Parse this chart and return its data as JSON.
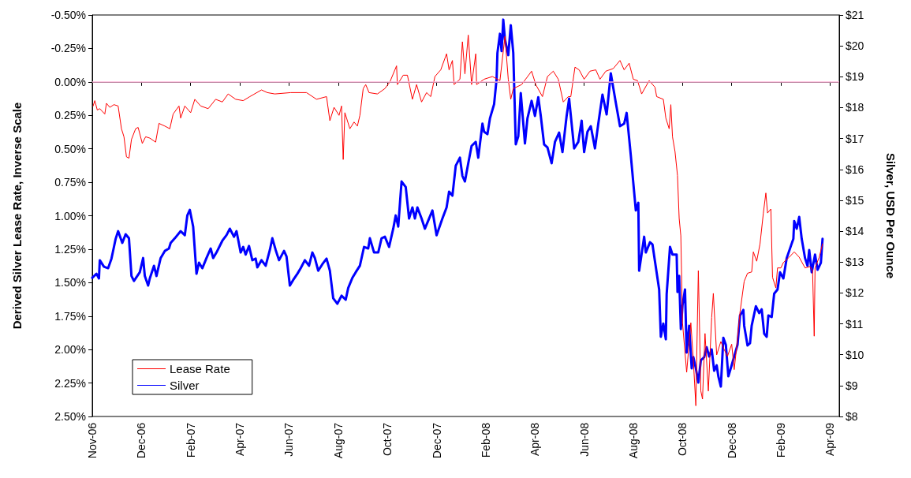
{
  "chart_data": {
    "type": "line",
    "ylabel": "Derived Silver Lease Rate, Inverse Scale",
    "y2label": "Silver, USD Per Ounce",
    "legend": "bottom left",
    "xlim": [
      "2006-11-01",
      "2009-04-15"
    ],
    "xticks": [
      {
        "value": "2006-11-01",
        "label": "Nov-06"
      },
      {
        "value": "2006-12-30",
        "label": "Dec-06"
      },
      {
        "value": "2007-02-27",
        "label": "Feb-07"
      },
      {
        "value": "2007-04-27",
        "label": "Apr-07"
      },
      {
        "value": "2007-06-25",
        "label": "Jun-07"
      },
      {
        "value": "2007-08-23",
        "label": "Aug-07"
      },
      {
        "value": "2007-10-21",
        "label": "Oct-07"
      },
      {
        "value": "2007-12-19",
        "label": "Dec-07"
      },
      {
        "value": "2008-02-16",
        "label": "Feb-08"
      },
      {
        "value": "2008-04-15",
        "label": "Apr-08"
      },
      {
        "value": "2008-06-13",
        "label": "Jun-08"
      },
      {
        "value": "2008-08-11",
        "label": "Aug-08"
      },
      {
        "value": "2008-10-09",
        "label": "Oct-08"
      },
      {
        "value": "2008-12-07",
        "label": "Dec-08"
      },
      {
        "value": "2009-02-04",
        "label": "Feb-09"
      },
      {
        "value": "2009-04-04",
        "label": "Apr-09"
      }
    ],
    "ylim": [
      2.5,
      -0.5
    ],
    "yticks": [
      {
        "value": -0.5,
        "label": "-0.50%"
      },
      {
        "value": -0.25,
        "label": "-0.25%"
      },
      {
        "value": 0,
        "label": "0.00%"
      },
      {
        "value": 0.25,
        "label": "0.25%"
      },
      {
        "value": 0.5,
        "label": "0.50%"
      },
      {
        "value": 0.75,
        "label": "0.75%"
      },
      {
        "value": 1,
        "label": "1.00%"
      },
      {
        "value": 1.25,
        "label": "1.25%"
      },
      {
        "value": 1.5,
        "label": "1.50%"
      },
      {
        "value": 1.75,
        "label": "1.75%"
      },
      {
        "value": 2,
        "label": "2.00%"
      },
      {
        "value": 2.25,
        "label": "2.25%"
      },
      {
        "value": 2.5,
        "label": "2.50%"
      }
    ],
    "y2lim": [
      8,
      21
    ],
    "y2ticks": [
      {
        "value": 8,
        "label": "$8"
      },
      {
        "value": 9,
        "label": "$9"
      },
      {
        "value": 10,
        "label": "$10"
      },
      {
        "value": 11,
        "label": "$11"
      },
      {
        "value": 12,
        "label": "$12"
      },
      {
        "value": 13,
        "label": "$13"
      },
      {
        "value": 14,
        "label": "$14"
      },
      {
        "value": 15,
        "label": "$15"
      },
      {
        "value": 16,
        "label": "$16"
      },
      {
        "value": 17,
        "label": "$17"
      },
      {
        "value": 18,
        "label": "$18"
      },
      {
        "value": 19,
        "label": "$19"
      },
      {
        "value": 20,
        "label": "$20"
      },
      {
        "value": 21,
        "label": "$21"
      }
    ],
    "ref_lines": [
      {
        "axis": "y",
        "value": 0,
        "label": null,
        "color": "#ffb3d9"
      }
    ],
    "series": [
      {
        "name": "Lease Rate",
        "color": "#ff0000",
        "x": [
          "2006-11-02",
          "2006-11-04",
          "2006-11-07",
          "2006-11-10",
          "2006-11-16",
          "2006-11-18",
          "2006-11-22",
          "2006-11-27",
          "2006-12-02",
          "2006-12-06",
          "2006-12-09",
          "2006-12-12",
          "2006-12-15",
          "2006-12-18",
          "2006-12-23",
          "2006-12-26",
          "2006-12-31",
          "2007-01-04",
          "2007-01-09",
          "2007-01-16",
          "2007-01-20",
          "2007-01-27",
          "2007-02-02",
          "2007-02-06",
          "2007-02-13",
          "2007-02-15",
          "2007-02-20",
          "2007-02-27",
          "2007-03-04",
          "2007-03-11",
          "2007-03-20",
          "2007-03-29",
          "2007-04-06",
          "2007-04-13",
          "2007-04-22",
          "2007-05-01",
          "2007-05-09",
          "2007-05-23",
          "2007-05-30",
          "2007-06-08",
          "2007-06-27",
          "2007-07-16",
          "2007-07-28",
          "2007-08-09",
          "2007-08-13",
          "2007-08-18",
          "2007-08-24",
          "2007-08-27",
          "2007-08-29",
          "2007-08-31",
          "2007-09-06",
          "2007-09-11",
          "2007-09-15",
          "2007-09-18",
          "2007-09-22",
          "2007-09-25",
          "2007-09-29",
          "2007-10-09",
          "2007-10-18",
          "2007-10-24",
          "2007-11-01",
          "2007-11-02",
          "2007-11-09",
          "2007-11-14",
          "2007-11-20",
          "2007-11-25",
          "2007-12-01",
          "2007-12-07",
          "2007-12-12",
          "2007-12-17",
          "2007-12-24",
          "2007-12-31",
          "2008-01-03",
          "2008-01-07",
          "2008-01-09",
          "2008-01-16",
          "2008-01-19",
          "2008-01-22",
          "2008-01-26",
          "2008-01-30",
          "2008-02-04",
          "2008-02-05",
          "2008-02-14",
          "2008-02-24",
          "2008-03-04",
          "2008-03-10",
          "2008-03-14",
          "2008-03-17",
          "2008-03-20",
          "2008-03-30",
          "2008-04-11",
          "2008-04-16",
          "2008-04-24",
          "2008-04-30",
          "2008-05-07",
          "2008-05-13",
          "2008-05-19",
          "2008-05-25",
          "2008-05-28",
          "2008-06-02",
          "2008-06-07",
          "2008-06-13",
          "2008-06-20",
          "2008-06-27",
          "2008-07-02",
          "2008-07-09",
          "2008-07-18",
          "2008-07-26",
          "2008-07-31",
          "2008-08-06",
          "2008-08-11",
          "2008-08-16",
          "2008-08-21",
          "2008-08-30",
          "2008-09-06",
          "2008-09-08",
          "2008-09-16",
          "2008-09-19",
          "2008-09-23",
          "2008-09-25",
          "2008-09-27",
          "2008-09-30",
          "2008-10-03",
          "2008-10-05",
          "2008-10-07",
          "2008-10-09",
          "2008-10-14",
          "2008-10-19",
          "2008-10-22",
          "2008-10-25",
          "2008-10-28",
          "2008-10-31",
          "2008-11-02",
          "2008-11-05",
          "2008-11-09",
          "2008-11-13",
          "2008-11-15",
          "2008-11-19",
          "2008-11-24",
          "2008-11-28",
          "2008-12-02",
          "2008-12-07",
          "2008-12-10",
          "2008-12-14",
          "2008-12-17",
          "2008-12-22",
          "2008-12-26",
          "2008-12-31",
          "2009-01-02",
          "2009-01-06",
          "2009-01-10",
          "2009-01-14",
          "2009-01-17",
          "2009-01-19",
          "2009-01-23",
          "2009-01-25",
          "2009-01-29",
          "2009-01-31",
          "2009-02-04",
          "2009-02-07",
          "2009-02-14",
          "2009-02-20",
          "2009-02-26",
          "2009-03-05",
          "2009-03-11",
          "2009-03-14",
          "2009-03-16",
          "2009-03-17",
          "2009-03-22",
          "2009-03-26"
        ],
        "values": [
          0.18,
          0.14,
          0.21,
          0.2,
          0.24,
          0.16,
          0.19,
          0.17,
          0.18,
          0.35,
          0.41,
          0.56,
          0.57,
          0.43,
          0.35,
          0.34,
          0.46,
          0.41,
          0.42,
          0.45,
          0.31,
          0.33,
          0.35,
          0.24,
          0.18,
          0.27,
          0.18,
          0.23,
          0.13,
          0.18,
          0.2,
          0.13,
          0.15,
          0.09,
          0.13,
          0.14,
          0.11,
          0.06,
          0.08,
          0.09,
          0.08,
          0.08,
          0.13,
          0.11,
          0.29,
          0.19,
          0.25,
          0.18,
          0.58,
          0.23,
          0.35,
          0.3,
          0.33,
          0.25,
          0.05,
          0.02,
          0.08,
          0.09,
          0.05,
          0.0,
          -0.12,
          0.02,
          -0.05,
          -0.05,
          0.13,
          0.02,
          0.15,
          0.08,
          0.11,
          -0.04,
          -0.09,
          -0.21,
          -0.09,
          -0.16,
          0.02,
          -0.02,
          -0.3,
          -0.06,
          -0.35,
          0.02,
          -0.21,
          0.02,
          -0.02,
          -0.04,
          -0.01,
          -0.34,
          -0.02,
          0.13,
          0.05,
          0.02,
          -0.08,
          0.02,
          0.11,
          -0.04,
          -0.08,
          -0.02,
          0.15,
          0.11,
          0.11,
          -0.11,
          -0.09,
          -0.02,
          -0.08,
          -0.09,
          -0.02,
          -0.08,
          -0.1,
          -0.16,
          -0.09,
          -0.14,
          -0.02,
          -0.01,
          0.09,
          -0.01,
          0.04,
          0.11,
          0.13,
          0.27,
          0.35,
          0.17,
          0.41,
          0.52,
          0.7,
          1.02,
          1.15,
          1.8,
          2.17,
          1.8,
          2.08,
          2.42,
          1.41,
          2.31,
          2.37,
          1.88,
          2.31,
          1.76,
          1.58,
          2.04,
          1.94,
          2.0,
          2.05,
          1.96,
          2.15,
          1.92,
          1.72,
          1.49,
          1.43,
          1.42,
          1.27,
          1.34,
          1.21,
          0.98,
          0.83,
          0.98,
          0.95,
          1.46,
          1.54,
          1.39,
          1.39,
          1.35,
          1.31,
          1.27,
          1.31,
          1.39,
          1.38,
          1.41,
          1.9,
          1.39,
          1.31,
          1.21
        ]
      },
      {
        "name": "Silver",
        "color": "#0000ff",
        "axis": "y2",
        "x": [
          "2006-11-01",
          "2006-11-06",
          "2006-11-09",
          "2006-11-10",
          "2006-11-15",
          "2006-11-20",
          "2006-11-24",
          "2006-11-27",
          "2006-11-29",
          "2006-12-02",
          "2006-12-07",
          "2006-12-11",
          "2006-12-15",
          "2006-12-18",
          "2006-12-21",
          "2006-12-28",
          "2007-01-01",
          "2007-01-03",
          "2007-01-07",
          "2007-01-09",
          "2007-01-14",
          "2007-01-17",
          "2007-01-22",
          "2007-01-27",
          "2007-02-01",
          "2007-02-03",
          "2007-02-08",
          "2007-02-15",
          "2007-02-20",
          "2007-02-23",
          "2007-02-26",
          "2007-03-02",
          "2007-03-06",
          "2007-03-09",
          "2007-03-13",
          "2007-03-18",
          "2007-03-23",
          "2007-03-26",
          "2007-03-30",
          "2007-04-06",
          "2007-04-11",
          "2007-04-15",
          "2007-04-20",
          "2007-04-23",
          "2007-04-28",
          "2007-05-01",
          "2007-05-04",
          "2007-05-08",
          "2007-05-12",
          "2007-05-16",
          "2007-05-18",
          "2007-05-23",
          "2007-05-28",
          "2007-06-02",
          "2007-06-05",
          "2007-06-09",
          "2007-06-13",
          "2007-06-19",
          "2007-06-22",
          "2007-06-26",
          "2007-06-30",
          "2007-07-05",
          "2007-07-09",
          "2007-07-14",
          "2007-07-19",
          "2007-07-23",
          "2007-07-26",
          "2007-07-30",
          "2007-08-04",
          "2007-08-09",
          "2007-08-13",
          "2007-08-17",
          "2007-08-22",
          "2007-08-27",
          "2007-09-01",
          "2007-09-04",
          "2007-09-09",
          "2007-09-13",
          "2007-09-18",
          "2007-09-23",
          "2007-09-28",
          "2007-09-30",
          "2007-10-05",
          "2007-10-10",
          "2007-10-14",
          "2007-10-18",
          "2007-10-23",
          "2007-10-28",
          "2007-10-31",
          "2007-11-03",
          "2007-11-07",
          "2007-11-12",
          "2007-11-16",
          "2007-11-20",
          "2007-11-23",
          "2007-11-26",
          "2007-12-01",
          "2007-12-05",
          "2007-12-14",
          "2007-12-19",
          "2007-12-26",
          "2007-12-31",
          "2008-01-03",
          "2008-01-07",
          "2008-01-11",
          "2008-01-16",
          "2008-01-19",
          "2008-01-22",
          "2008-01-26",
          "2008-01-30",
          "2008-02-04",
          "2008-02-07",
          "2008-02-12",
          "2008-02-14",
          "2008-02-18",
          "2008-02-21",
          "2008-02-26",
          "2008-02-29",
          "2008-03-01",
          "2008-03-04",
          "2008-03-06",
          "2008-03-08",
          "2008-03-10",
          "2008-03-14",
          "2008-03-17",
          "2008-03-20",
          "2008-03-23",
          "2008-03-26",
          "2008-03-29",
          "2008-04-03",
          "2008-04-06",
          "2008-04-11",
          "2008-04-15",
          "2008-04-19",
          "2008-04-22",
          "2008-04-26",
          "2008-04-30",
          "2008-05-05",
          "2008-05-09",
          "2008-05-14",
          "2008-05-18",
          "2008-05-23",
          "2008-05-26",
          "2008-06-01",
          "2008-06-06",
          "2008-06-10",
          "2008-06-13",
          "2008-06-17",
          "2008-06-21",
          "2008-06-26",
          "2008-06-30",
          "2008-07-05",
          "2008-07-10",
          "2008-07-15",
          "2008-07-21",
          "2008-07-26",
          "2008-07-31",
          "2008-08-03",
          "2008-08-08",
          "2008-08-14",
          "2008-08-17",
          "2008-08-18",
          "2008-08-24",
          "2008-08-26",
          "2008-08-31",
          "2008-09-03",
          "2008-09-06",
          "2008-09-11",
          "2008-09-13",
          "2008-09-16",
          "2008-09-19",
          "2008-09-20",
          "2008-09-24",
          "2008-09-27",
          "2008-10-02",
          "2008-10-03",
          "2008-10-05",
          "2008-10-07",
          "2008-10-09",
          "2008-10-12",
          "2008-10-14",
          "2008-10-17",
          "2008-10-20",
          "2008-10-22",
          "2008-10-25",
          "2008-10-28",
          "2008-10-31",
          "2008-11-04",
          "2008-11-07",
          "2008-11-10",
          "2008-11-13",
          "2008-11-16",
          "2008-11-19",
          "2008-11-21",
          "2008-11-24",
          "2008-11-27",
          "2008-11-30",
          "2008-12-03",
          "2008-12-07",
          "2008-12-11",
          "2008-12-14",
          "2008-12-17",
          "2008-12-21",
          "2008-12-22",
          "2008-12-26",
          "2008-12-29",
          "2008-12-31",
          "2009-01-05",
          "2009-01-09",
          "2009-01-12",
          "2009-01-15",
          "2009-01-18",
          "2009-01-20",
          "2009-01-24",
          "2009-01-27",
          "2009-01-31",
          "2009-02-03",
          "2009-02-07",
          "2009-02-11",
          "2009-02-16",
          "2009-02-19",
          "2009-02-20",
          "2009-02-23",
          "2009-02-26",
          "2009-03-01",
          "2009-03-05",
          "2009-03-08",
          "2009-03-10",
          "2009-03-13",
          "2009-03-17",
          "2009-03-20",
          "2009-03-24",
          "2009-03-26"
        ],
        "values": [
          12.49,
          12.62,
          12.47,
          13.06,
          12.85,
          12.8,
          13.11,
          13.49,
          13.75,
          14.0,
          13.62,
          13.9,
          13.77,
          12.55,
          12.39,
          12.67,
          13.13,
          12.55,
          12.24,
          12.47,
          12.88,
          12.55,
          13.13,
          13.36,
          13.44,
          13.62,
          13.77,
          14.0,
          13.87,
          14.51,
          14.69,
          14.15,
          12.62,
          12.98,
          12.8,
          13.13,
          13.44,
          13.13,
          13.31,
          13.69,
          13.87,
          14.08,
          13.82,
          14.0,
          13.31,
          13.49,
          13.24,
          13.52,
          13.06,
          13.11,
          12.83,
          13.06,
          12.88,
          13.39,
          13.77,
          13.39,
          13.06,
          13.36,
          13.18,
          12.24,
          12.42,
          12.62,
          12.8,
          13.06,
          12.88,
          13.31,
          13.13,
          12.72,
          12.93,
          13.11,
          12.72,
          11.83,
          11.65,
          11.91,
          11.78,
          12.16,
          12.49,
          12.67,
          12.88,
          13.49,
          13.44,
          13.77,
          13.31,
          13.31,
          13.77,
          13.82,
          13.49,
          14.08,
          14.51,
          14.15,
          15.61,
          15.43,
          14.41,
          14.77,
          14.41,
          14.77,
          14.41,
          14.08,
          14.67,
          13.87,
          14.41,
          14.77,
          15.28,
          15.15,
          16.12,
          16.38,
          15.79,
          15.61,
          16.2,
          16.76,
          16.89,
          16.38,
          17.48,
          17.22,
          17.14,
          17.65,
          18.11,
          18.93,
          19.77,
          20.39,
          19.83,
          20.85,
          20.21,
          19.7,
          20.67,
          19.77,
          16.81,
          17.07,
          18.47,
          16.84,
          17.65,
          18.22,
          17.73,
          18.34,
          17.73,
          16.81,
          16.71,
          16.2,
          16.89,
          17.19,
          16.56,
          17.73,
          18.29,
          16.68,
          16.89,
          17.58,
          16.56,
          17.22,
          17.4,
          16.68,
          17.48,
          18.42,
          17.78,
          19.11,
          18.16,
          17.4,
          17.48,
          17.83,
          16.45,
          14.67,
          14.92,
          12.72,
          13.82,
          13.31,
          13.64,
          13.57,
          13.02,
          12.11,
          10.58,
          11.01,
          10.5,
          11.96,
          13.49,
          13.24,
          13.24,
          12.03,
          12.55,
          10.83,
          11.6,
          12.11,
          10.07,
          10.94,
          9.56,
          9.92,
          9.56,
          9.1,
          9.82,
          9.92,
          10.24,
          9.94,
          10.17,
          9.48,
          9.66,
          9.3,
          8.97,
          10.55,
          10.32,
          9.3,
          9.66,
          10.04,
          10.32,
          11.27,
          11.45,
          10.94,
          10.3,
          10.37,
          10.94,
          11.57,
          11.35,
          11.47,
          10.68,
          10.58,
          11.27,
          11.22,
          11.98,
          12.11,
          12.67,
          12.47,
          13.13,
          13.52,
          13.75,
          14.33,
          14.08,
          14.46,
          13.75,
          13.13,
          12.88,
          13.39,
          12.67,
          13.24,
          12.75,
          12.98,
          13.75
        ]
      }
    ]
  }
}
